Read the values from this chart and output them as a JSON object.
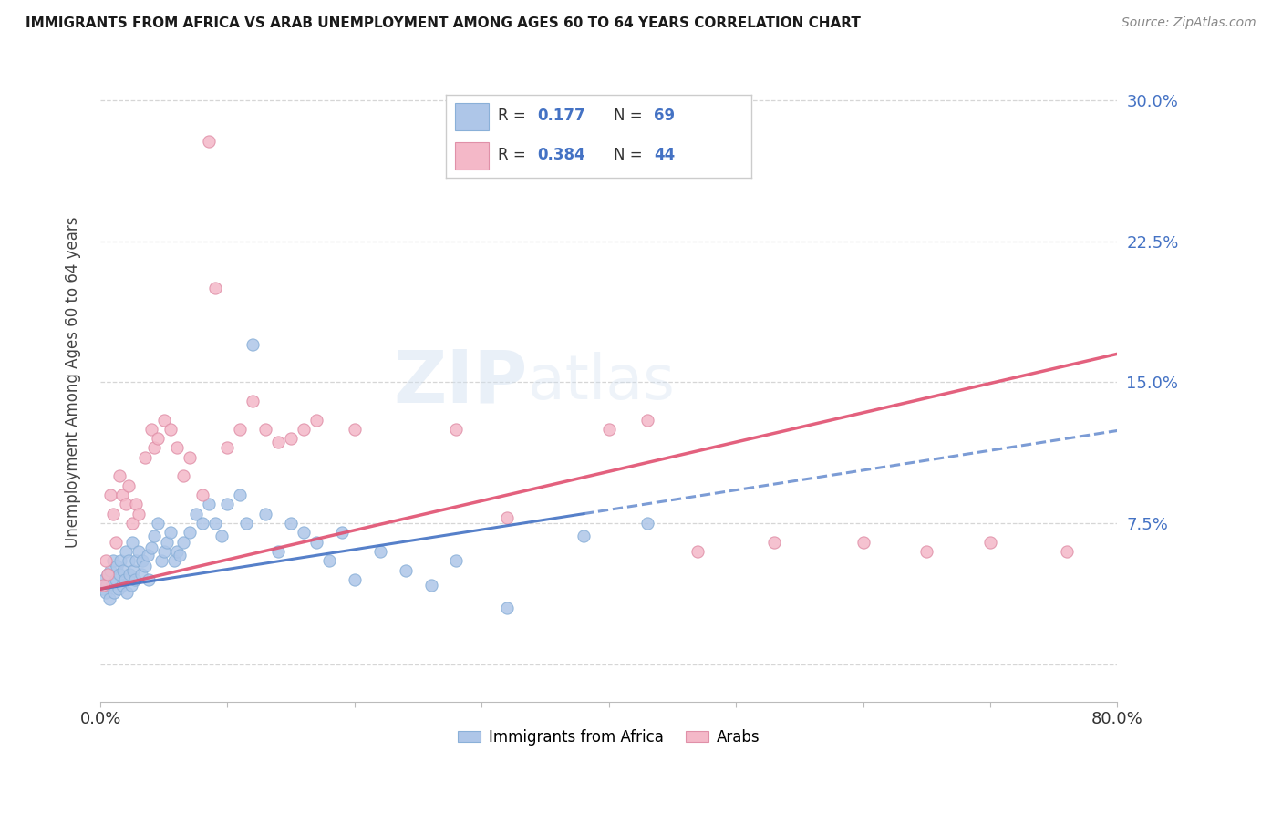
{
  "title": "IMMIGRANTS FROM AFRICA VS ARAB UNEMPLOYMENT AMONG AGES 60 TO 64 YEARS CORRELATION CHART",
  "source": "Source: ZipAtlas.com",
  "ylabel": "Unemployment Among Ages 60 to 64 years",
  "xlim": [
    0.0,
    0.8
  ],
  "ylim": [
    -0.02,
    0.32
  ],
  "yticks": [
    0.0,
    0.075,
    0.15,
    0.225,
    0.3
  ],
  "ytick_labels": [
    "",
    "7.5%",
    "15.0%",
    "22.5%",
    "30.0%"
  ],
  "xticks": [
    0.0,
    0.1,
    0.2,
    0.3,
    0.4,
    0.5,
    0.6,
    0.7,
    0.8
  ],
  "xtick_labels": [
    "0.0%",
    "",
    "",
    "",
    "",
    "",
    "",
    "",
    "80.0%"
  ],
  "africa_R": 0.177,
  "africa_N": 69,
  "arab_R": 0.384,
  "arab_N": 44,
  "africa_color": "#aec6e8",
  "arab_color": "#f4b8c8",
  "africa_line_color": "#4472c4",
  "arab_line_color": "#e05070",
  "axis_label_color": "#4472c4",
  "legend_text_color": "#333333",
  "legend_value_color": "#4472c4",
  "africa_scatter_x": [
    0.002,
    0.003,
    0.004,
    0.005,
    0.006,
    0.007,
    0.008,
    0.009,
    0.01,
    0.011,
    0.012,
    0.013,
    0.014,
    0.015,
    0.016,
    0.017,
    0.018,
    0.019,
    0.02,
    0.021,
    0.022,
    0.023,
    0.024,
    0.025,
    0.026,
    0.027,
    0.028,
    0.03,
    0.032,
    0.033,
    0.035,
    0.037,
    0.038,
    0.04,
    0.042,
    0.045,
    0.048,
    0.05,
    0.052,
    0.055,
    0.058,
    0.06,
    0.062,
    0.065,
    0.07,
    0.075,
    0.08,
    0.085,
    0.09,
    0.095,
    0.1,
    0.11,
    0.115,
    0.12,
    0.13,
    0.14,
    0.15,
    0.16,
    0.17,
    0.18,
    0.19,
    0.2,
    0.22,
    0.24,
    0.26,
    0.28,
    0.32,
    0.38,
    0.43
  ],
  "africa_scatter_y": [
    0.04,
    0.045,
    0.038,
    0.042,
    0.048,
    0.035,
    0.05,
    0.043,
    0.055,
    0.038,
    0.045,
    0.052,
    0.04,
    0.048,
    0.055,
    0.042,
    0.05,
    0.045,
    0.06,
    0.038,
    0.055,
    0.048,
    0.042,
    0.065,
    0.05,
    0.045,
    0.055,
    0.06,
    0.048,
    0.055,
    0.052,
    0.058,
    0.045,
    0.062,
    0.068,
    0.075,
    0.055,
    0.06,
    0.065,
    0.07,
    0.055,
    0.06,
    0.058,
    0.065,
    0.07,
    0.08,
    0.075,
    0.085,
    0.075,
    0.068,
    0.085,
    0.09,
    0.075,
    0.17,
    0.08,
    0.06,
    0.075,
    0.07,
    0.065,
    0.055,
    0.07,
    0.045,
    0.06,
    0.05,
    0.042,
    0.055,
    0.03,
    0.068,
    0.075
  ],
  "arab_scatter_x": [
    0.002,
    0.004,
    0.006,
    0.008,
    0.01,
    0.012,
    0.015,
    0.017,
    0.02,
    0.022,
    0.025,
    0.028,
    0.03,
    0.035,
    0.04,
    0.042,
    0.045,
    0.05,
    0.055,
    0.06,
    0.065,
    0.07,
    0.08,
    0.085,
    0.09,
    0.1,
    0.11,
    0.12,
    0.13,
    0.14,
    0.15,
    0.16,
    0.17,
    0.2,
    0.28,
    0.32,
    0.4,
    0.43,
    0.47,
    0.53,
    0.6,
    0.65,
    0.7,
    0.76
  ],
  "arab_scatter_y": [
    0.042,
    0.055,
    0.048,
    0.09,
    0.08,
    0.065,
    0.1,
    0.09,
    0.085,
    0.095,
    0.075,
    0.085,
    0.08,
    0.11,
    0.125,
    0.115,
    0.12,
    0.13,
    0.125,
    0.115,
    0.1,
    0.11,
    0.09,
    0.278,
    0.2,
    0.115,
    0.125,
    0.14,
    0.125,
    0.118,
    0.12,
    0.125,
    0.13,
    0.125,
    0.125,
    0.078,
    0.125,
    0.13,
    0.06,
    0.065,
    0.065,
    0.06,
    0.065,
    0.06
  ],
  "africa_trend_x": [
    0.0,
    0.38
  ],
  "africa_trend_y": [
    0.04,
    0.08
  ],
  "arab_trend_x": [
    0.0,
    0.8
  ],
  "arab_trend_y": [
    0.04,
    0.165
  ]
}
